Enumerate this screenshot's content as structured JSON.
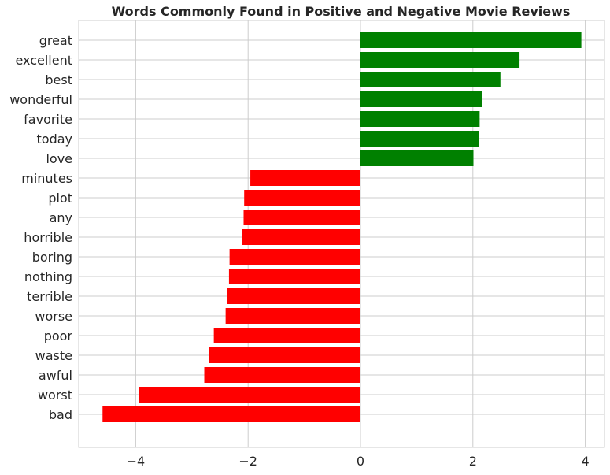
{
  "chart_data": {
    "type": "bar",
    "orientation": "horizontal",
    "title": "Words Commonly Found in Positive and Negative Movie Reviews",
    "xlabel": "",
    "ylabel": "",
    "xlim": [
      -5.0,
      4.3
    ],
    "x_ticks": [
      -4,
      -2,
      0,
      2,
      4
    ],
    "x_tick_labels": [
      "−4",
      "−2",
      "0",
      "2",
      "4"
    ],
    "grid": true,
    "categories": [
      "great",
      "excellent",
      "best",
      "wonderful",
      "favorite",
      "today",
      "love",
      "minutes",
      "plot",
      "any",
      "horrible",
      "boring",
      "nothing",
      "terrible",
      "worse",
      "poor",
      "waste",
      "awful",
      "worst",
      "bad"
    ],
    "values": [
      3.93,
      2.83,
      2.49,
      2.17,
      2.12,
      2.11,
      2.01,
      -1.96,
      -2.07,
      -2.08,
      -2.11,
      -2.33,
      -2.34,
      -2.38,
      -2.4,
      -2.61,
      -2.7,
      -2.78,
      -3.94,
      -4.59
    ],
    "colors": {
      "positive": "#008000",
      "negative": "#ff0000",
      "grid": "#cccccc",
      "spine": "#cccccc",
      "text": "#262626"
    }
  }
}
